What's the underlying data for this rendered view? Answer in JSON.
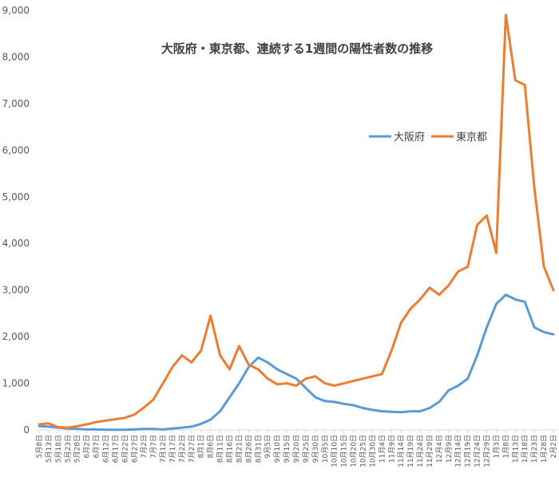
{
  "chart_data": {
    "type": "line",
    "title": "大阪府・東京都、連続する1週間の陽性者数の推移",
    "legend_position": "top-right",
    "grid": false,
    "ylim": [
      0,
      9000
    ],
    "y_ticks": [
      "0",
      "1,000",
      "2,000",
      "3,000",
      "4,000",
      "5,000",
      "6,000",
      "7,000",
      "8,000",
      "9,000"
    ],
    "x_tick_labels": [
      "5月8日",
      "5月13日",
      "5月18日",
      "5月23日",
      "5月28日",
      "6月2日",
      "6月7日",
      "6月12日",
      "6月17日",
      "6月22日",
      "6月27日",
      "7月2日",
      "7月7日",
      "7月12日",
      "7月17日",
      "7月22日",
      "7月27日",
      "8月1日",
      "8月6日",
      "8月11日",
      "8月16日",
      "8月21日",
      "8月26日",
      "8月31日",
      "9月5日",
      "9月10日",
      "9月15日",
      "9月20日",
      "9月25日",
      "9月30日",
      "10月5日",
      "10月10日",
      "10月15日",
      "10月20日",
      "10月25日",
      "10月30日",
      "11月4日",
      "11月9日",
      "11月14日",
      "11月19日",
      "11月24日",
      "11月29日",
      "12月4日",
      "12月9日",
      "12月14日",
      "12月19日",
      "12月24日",
      "12月29日",
      "1月3日",
      "1月8日",
      "1月13日",
      "1月18日",
      "1月23日",
      "1月28日",
      "2月2日"
    ],
    "series": [
      {
        "name": "大阪府",
        "color": "#5B9BD5",
        "values": [
          80,
          70,
          50,
          30,
          20,
          10,
          10,
          5,
          5,
          5,
          10,
          20,
          20,
          10,
          30,
          50,
          70,
          130,
          220,
          400,
          700,
          1000,
          1350,
          1550,
          1450,
          1300,
          1200,
          1100,
          900,
          700,
          620,
          600,
          560,
          530,
          470,
          430,
          400,
          390,
          380,
          400,
          400,
          470,
          600,
          850,
          950,
          1100,
          1600,
          2200,
          2700,
          2900,
          2800,
          2750,
          2200,
          2100,
          2050
        ]
      },
      {
        "name": "東京都",
        "color": "#ED7D31",
        "values": [
          120,
          140,
          60,
          50,
          80,
          120,
          170,
          200,
          230,
          260,
          330,
          480,
          650,
          1000,
          1350,
          1600,
          1450,
          1700,
          2450,
          1600,
          1300,
          1800,
          1400,
          1300,
          1100,
          980,
          1000,
          950,
          1100,
          1150,
          1000,
          950,
          1000,
          1050,
          1100,
          1150,
          1200,
          1700,
          2300,
          2600,
          2800,
          3050,
          2900,
          3100,
          3400,
          3500,
          4400,
          4600,
          3800,
          8900,
          7500,
          7400,
          5200,
          3500,
          3000
        ]
      }
    ]
  }
}
